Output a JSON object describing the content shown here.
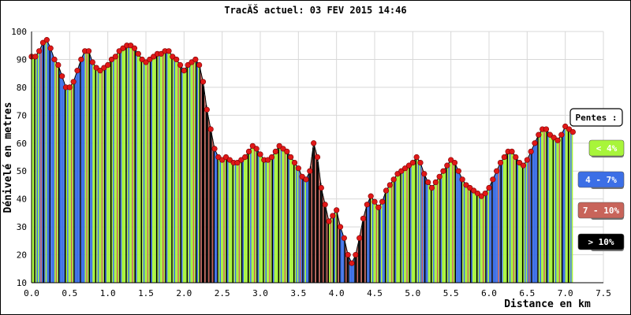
{
  "chart_data": {
    "type": "bar",
    "title": "TracĂŠ actuel: 03 FEV 2015 14:46",
    "xlabel": "Distance en km",
    "ylabel": "Dénivelé en metres",
    "xlim": [
      0,
      7.5
    ],
    "ylim": [
      10,
      100
    ],
    "x_ticks": [
      "0.0",
      "0.5",
      "1.0",
      "1.5",
      "2.0",
      "2.5",
      "3.0",
      "3.5",
      "4.0",
      "4.5",
      "5.0",
      "5.5",
      "6.0",
      "6.5",
      "7.0",
      "7.5"
    ],
    "y_ticks": [
      "10",
      "20",
      "30",
      "40",
      "50",
      "60",
      "70",
      "80",
      "90",
      "100"
    ],
    "grid": true,
    "legend": {
      "title": "Pentes :",
      "position": "right",
      "items": [
        {
          "label": "< 4%",
          "color": "#a8f53a",
          "text_color": "#ffffff"
        },
        {
          "label": "4 - 7%",
          "color": "#3c6fe6",
          "text_color": "#ffffff"
        },
        {
          "label": "7 - 10%",
          "color": "#c8645a",
          "text_color": "#ffffff"
        },
        {
          "label": "> 10%",
          "color": "#000000",
          "text_color": "#ffffff"
        }
      ]
    },
    "colors": {
      "lt4": "#a8f53a",
      "4to7": "#3c6fe6",
      "7to10": "#c8645a",
      "gt10": "#000000",
      "marker": "#e01818",
      "background": "#ffffff",
      "grid": "#d8d8d8"
    },
    "profile": [
      [
        0.0,
        91
      ],
      [
        0.05,
        91
      ],
      [
        0.1,
        93
      ],
      [
        0.15,
        96
      ],
      [
        0.2,
        97
      ],
      [
        0.25,
        94
      ],
      [
        0.3,
        90
      ],
      [
        0.35,
        88
      ],
      [
        0.4,
        84
      ],
      [
        0.45,
        80
      ],
      [
        0.5,
        80
      ],
      [
        0.55,
        82
      ],
      [
        0.6,
        86
      ],
      [
        0.65,
        90
      ],
      [
        0.7,
        93
      ],
      [
        0.75,
        93
      ],
      [
        0.8,
        89
      ],
      [
        0.85,
        87
      ],
      [
        0.9,
        86
      ],
      [
        0.95,
        87
      ],
      [
        1.0,
        88
      ],
      [
        1.05,
        90
      ],
      [
        1.1,
        91
      ],
      [
        1.15,
        93
      ],
      [
        1.2,
        94
      ],
      [
        1.25,
        95
      ],
      [
        1.3,
        95
      ],
      [
        1.35,
        94
      ],
      [
        1.4,
        92
      ],
      [
        1.45,
        90
      ],
      [
        1.5,
        89
      ],
      [
        1.55,
        90
      ],
      [
        1.6,
        91
      ],
      [
        1.65,
        92
      ],
      [
        1.7,
        92
      ],
      [
        1.75,
        93
      ],
      [
        1.8,
        93
      ],
      [
        1.85,
        91
      ],
      [
        1.9,
        90
      ],
      [
        1.95,
        88
      ],
      [
        2.0,
        86
      ],
      [
        2.05,
        88
      ],
      [
        2.1,
        89
      ],
      [
        2.15,
        90
      ],
      [
        2.2,
        88
      ],
      [
        2.25,
        82
      ],
      [
        2.3,
        72
      ],
      [
        2.35,
        65
      ],
      [
        2.4,
        58
      ],
      [
        2.45,
        55
      ],
      [
        2.5,
        54
      ],
      [
        2.55,
        55
      ],
      [
        2.6,
        54
      ],
      [
        2.65,
        53
      ],
      [
        2.7,
        53
      ],
      [
        2.75,
        54
      ],
      [
        2.8,
        55
      ],
      [
        2.85,
        57
      ],
      [
        2.9,
        59
      ],
      [
        2.95,
        58
      ],
      [
        3.0,
        56
      ],
      [
        3.05,
        54
      ],
      [
        3.1,
        54
      ],
      [
        3.15,
        55
      ],
      [
        3.2,
        57
      ],
      [
        3.25,
        59
      ],
      [
        3.3,
        58
      ],
      [
        3.35,
        57
      ],
      [
        3.4,
        55
      ],
      [
        3.45,
        53
      ],
      [
        3.5,
        51
      ],
      [
        3.55,
        48
      ],
      [
        3.6,
        47
      ],
      [
        3.65,
        50
      ],
      [
        3.7,
        60
      ],
      [
        3.75,
        55
      ],
      [
        3.8,
        44
      ],
      [
        3.85,
        38
      ],
      [
        3.9,
        32
      ],
      [
        3.95,
        34
      ],
      [
        4.0,
        36
      ],
      [
        4.05,
        30
      ],
      [
        4.1,
        26
      ],
      [
        4.15,
        20
      ],
      [
        4.2,
        17
      ],
      [
        4.25,
        20
      ],
      [
        4.3,
        26
      ],
      [
        4.35,
        33
      ],
      [
        4.4,
        38
      ],
      [
        4.45,
        41
      ],
      [
        4.5,
        39
      ],
      [
        4.55,
        37
      ],
      [
        4.6,
        39
      ],
      [
        4.65,
        43
      ],
      [
        4.7,
        45
      ],
      [
        4.75,
        47
      ],
      [
        4.8,
        49
      ],
      [
        4.85,
        50
      ],
      [
        4.9,
        51
      ],
      [
        4.95,
        52
      ],
      [
        5.0,
        53
      ],
      [
        5.05,
        55
      ],
      [
        5.1,
        53
      ],
      [
        5.15,
        49
      ],
      [
        5.2,
        46
      ],
      [
        5.25,
        44
      ],
      [
        5.3,
        46
      ],
      [
        5.35,
        48
      ],
      [
        5.4,
        50
      ],
      [
        5.45,
        52
      ],
      [
        5.5,
        54
      ],
      [
        5.55,
        53
      ],
      [
        5.6,
        50
      ],
      [
        5.65,
        47
      ],
      [
        5.7,
        45
      ],
      [
        5.75,
        44
      ],
      [
        5.8,
        43
      ],
      [
        5.85,
        42
      ],
      [
        5.9,
        41
      ],
      [
        5.95,
        42
      ],
      [
        6.0,
        44
      ],
      [
        6.05,
        47
      ],
      [
        6.1,
        50
      ],
      [
        6.15,
        53
      ],
      [
        6.2,
        55
      ],
      [
        6.25,
        57
      ],
      [
        6.3,
        57
      ],
      [
        6.35,
        55
      ],
      [
        6.4,
        53
      ],
      [
        6.45,
        52
      ],
      [
        6.5,
        54
      ],
      [
        6.55,
        57
      ],
      [
        6.6,
        60
      ],
      [
        6.65,
        63
      ],
      [
        6.7,
        65
      ],
      [
        6.75,
        65
      ],
      [
        6.8,
        63
      ],
      [
        6.85,
        62
      ],
      [
        6.9,
        61
      ],
      [
        6.95,
        63
      ],
      [
        7.0,
        66
      ],
      [
        7.05,
        65
      ],
      [
        7.1,
        64
      ]
    ]
  }
}
